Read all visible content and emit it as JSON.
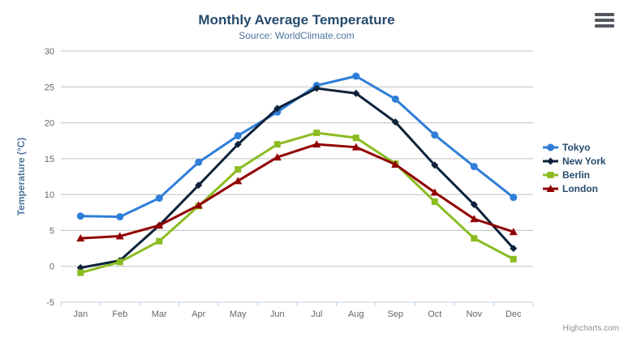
{
  "header": {
    "title": "Monthly Average Temperature",
    "subtitle": "Source: WorldClimate.com"
  },
  "credits": {
    "label": "Highcharts.com"
  },
  "export_menu": {
    "icon": "hamburger-icon"
  },
  "chart_data": {
    "type": "line",
    "title": "Monthly Average Temperature",
    "subtitle": "Source: WorldClimate.com",
    "xlabel": "",
    "ylabel": "Temperature (°C)",
    "ylim": [
      -5,
      30
    ],
    "ytick_step": 5,
    "grid": true,
    "legend_position": "right",
    "grid_color": "#C0C0C0",
    "axis_color": "#C0D0E0",
    "label_color": "#666666",
    "axis_title_color": "#4d759e",
    "legend_text_color": "#274b6d",
    "categories": [
      "Jan",
      "Feb",
      "Mar",
      "Apr",
      "May",
      "Jun",
      "Jul",
      "Aug",
      "Sep",
      "Oct",
      "Nov",
      "Dec"
    ],
    "series": [
      {
        "name": "Tokyo",
        "color": "#2f7ed8",
        "marker": "circle",
        "values": [
          7.0,
          6.9,
          9.5,
          14.5,
          18.2,
          21.5,
          25.2,
          26.5,
          23.3,
          18.3,
          13.9,
          9.6
        ]
      },
      {
        "name": "New York",
        "color": "#0d233a",
        "marker": "diamond",
        "values": [
          -0.2,
          0.8,
          5.7,
          11.3,
          17.0,
          22.0,
          24.8,
          24.1,
          20.1,
          14.1,
          8.6,
          2.5
        ]
      },
      {
        "name": "Berlin",
        "color": "#8bbc21",
        "marker": "square",
        "values": [
          -0.9,
          0.6,
          3.5,
          8.4,
          13.5,
          17.0,
          18.6,
          17.9,
          14.3,
          9.0,
          3.9,
          1.0
        ]
      },
      {
        "name": "London",
        "color": "#910000",
        "marker": "triangle",
        "values": [
          3.9,
          4.2,
          5.7,
          8.5,
          11.9,
          15.2,
          17.0,
          16.6,
          14.2,
          10.3,
          6.6,
          4.8
        ]
      }
    ]
  }
}
